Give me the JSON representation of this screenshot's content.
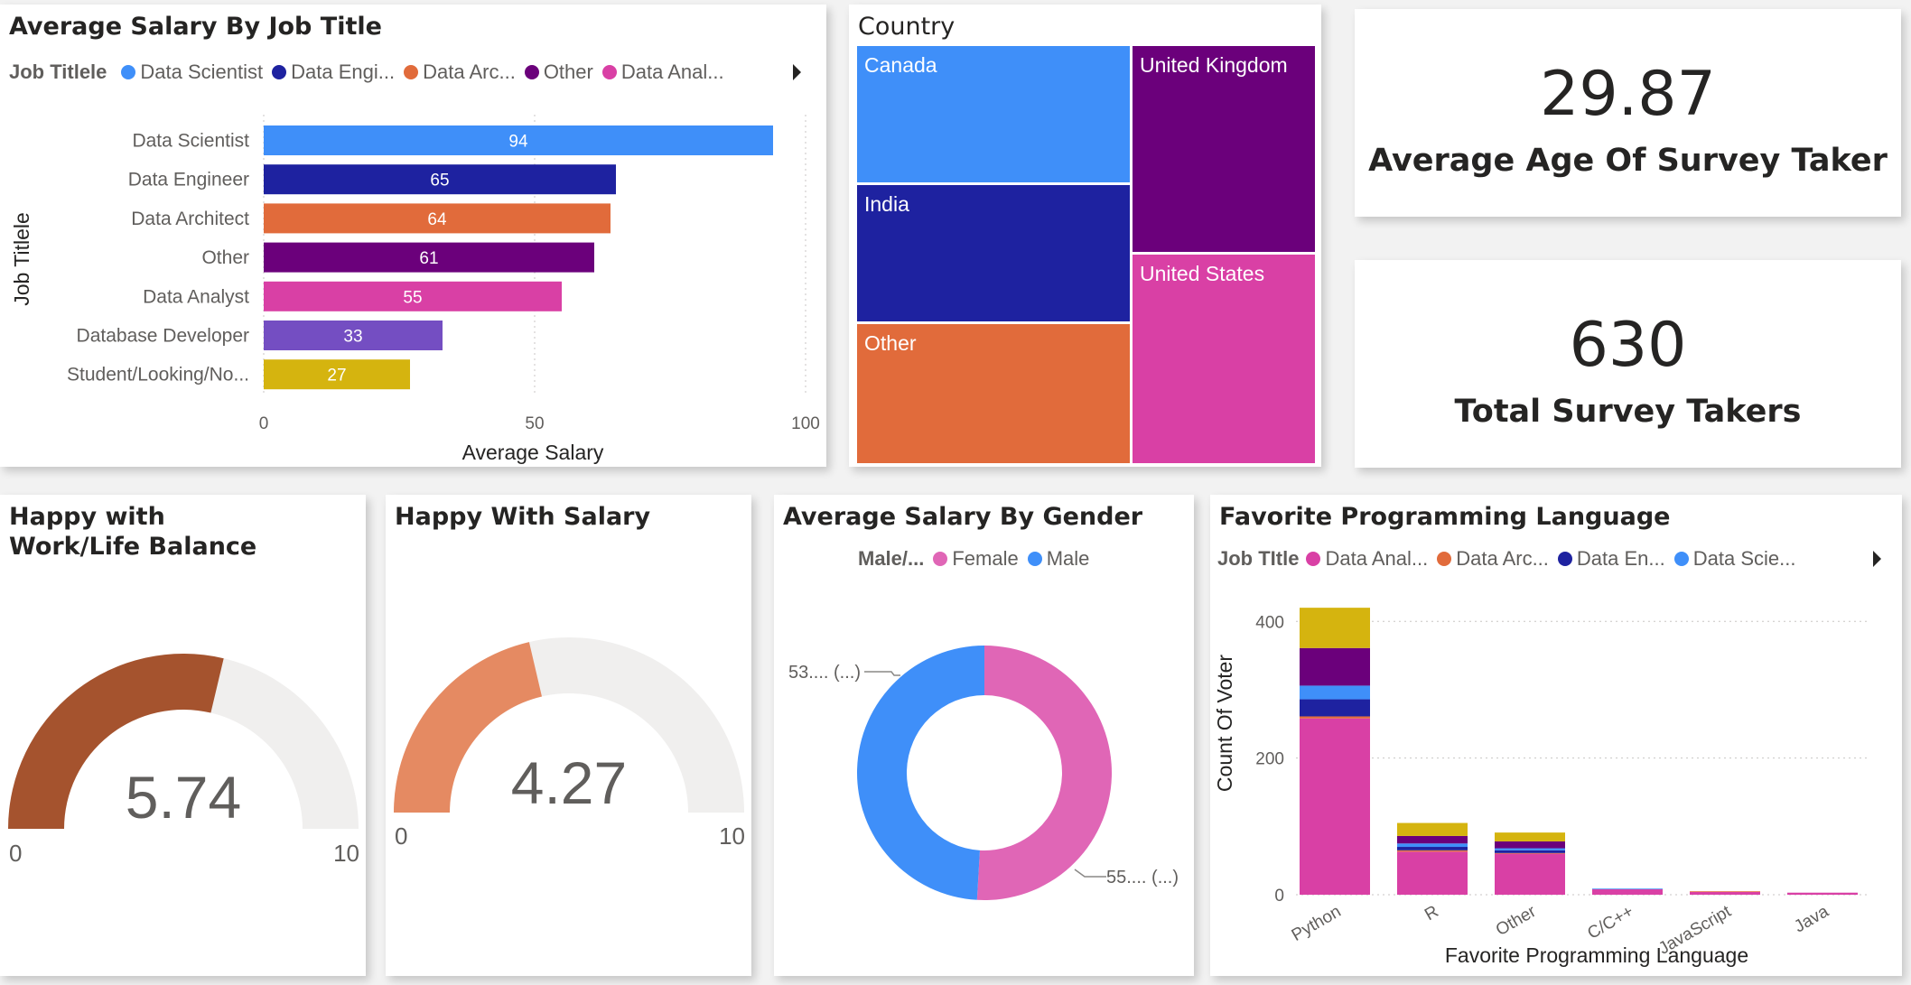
{
  "job_title_chart": {
    "title": "Average Salary By Job Title",
    "legend_title": "Job Titlele",
    "legend": [
      {
        "label": "Data Scientist",
        "color": "#3f8ff9"
      },
      {
        "label": "Data Engi...",
        "color": "#1e22a0"
      },
      {
        "label": "Data Arc...",
        "color": "#e16b3b"
      },
      {
        "label": "Other",
        "color": "#6b007b"
      },
      {
        "label": "Data Anal...",
        "color": "#d940a5"
      }
    ],
    "ylabel": "Job Titlele",
    "xlabel": "Average Salary",
    "ticks": [
      "0",
      "50",
      "100"
    ]
  },
  "country": {
    "title": "Country",
    "cells": [
      {
        "label": "Canada",
        "color": "#3f8ff9"
      },
      {
        "label": "India",
        "color": "#1e22a0"
      },
      {
        "label": "Other",
        "color": "#e16b3b"
      },
      {
        "label": "United Kingdom",
        "color": "#6b007b"
      },
      {
        "label": "United States",
        "color": "#d940a5"
      }
    ]
  },
  "kpi_age": {
    "value": "29.87",
    "label": "Average Age Of Survey Taker"
  },
  "kpi_total": {
    "value": "630",
    "label": "Total Survey Takers"
  },
  "gauge_worklife": {
    "title": "Happy with Work/Life Balance",
    "value": "5.74",
    "min": "0",
    "max": "10",
    "fraction": 0.574,
    "color": "#a5532e"
  },
  "gauge_salary": {
    "title": "Happy With Salary",
    "value": "4.27",
    "min": "0",
    "max": "10",
    "fraction": 0.427,
    "color": "#e58a62"
  },
  "gender": {
    "title": "Average Salary By Gender",
    "legend_title": "Male/...",
    "legend": [
      {
        "label": "Female",
        "color": "#e066b6"
      },
      {
        "label": "Male",
        "color": "#3f8ff9"
      }
    ],
    "label_male": "53.... (...)",
    "label_female": "55.... (...)"
  },
  "language": {
    "title": "Favorite Programming Language",
    "legend_title": "Job TItle",
    "legend": [
      {
        "label": "Data Anal...",
        "color": "#d940a5"
      },
      {
        "label": "Data Arc...",
        "color": "#e16b3b"
      },
      {
        "label": "Data En...",
        "color": "#1e22a0"
      },
      {
        "label": "Data Scie...",
        "color": "#3f8ff9"
      }
    ],
    "ylabel": "Count Of Voter",
    "xlabel": "Favorite Programming Language",
    "ticks": [
      "0",
      "200",
      "400"
    ]
  },
  "chart_data": [
    {
      "type": "bar",
      "orientation": "horizontal",
      "title": "Average Salary By Job Title",
      "xlabel": "Average Salary",
      "ylabel": "Job Titlele",
      "xlim": [
        0,
        100
      ],
      "grid": true,
      "legend_placement": "top",
      "categories": [
        "Data Scientist",
        "Data Engineer",
        "Data Architect",
        "Other",
        "Data Analyst",
        "Database Developer",
        "Student/Looking/No..."
      ],
      "values": [
        94,
        65,
        64,
        61,
        55,
        33,
        27
      ],
      "colors": [
        "#3f8ff9",
        "#1e22a0",
        "#e16b3b",
        "#6b007b",
        "#d940a5",
        "#744ec2",
        "#d5b40f"
      ]
    },
    {
      "type": "pie",
      "title": "Average Salary By Gender",
      "legend_placement": "top",
      "categories": [
        "Female",
        "Male"
      ],
      "values": [
        55,
        53
      ],
      "colors": [
        "#e066b6",
        "#3f8ff9"
      ]
    },
    {
      "type": "bar",
      "stacked": true,
      "title": "Favorite Programming Language",
      "xlabel": "Favorite Programming Language",
      "ylabel": "Count Of Voter",
      "ylim": [
        0,
        440
      ],
      "grid": true,
      "legend_placement": "top",
      "categories": [
        "Python",
        "R",
        "Other",
        "C/C++",
        "JavaScript",
        "Java"
      ],
      "series": [
        {
          "name": "Data Anal...",
          "color": "#d940a5",
          "values": [
            258,
            63,
            60,
            8,
            4,
            3
          ]
        },
        {
          "name": "Data Arc...",
          "color": "#e16b3b",
          "values": [
            3,
            2,
            1,
            0,
            1,
            0
          ]
        },
        {
          "name": "Data En...",
          "color": "#1e22a0",
          "values": [
            25,
            5,
            4,
            0,
            0,
            0
          ]
        },
        {
          "name": "Data Scie...",
          "color": "#3f8ff9",
          "values": [
            20,
            5,
            3,
            1,
            0,
            0
          ]
        },
        {
          "color": "#6b007b",
          "values": [
            55,
            11,
            10,
            0,
            0,
            0
          ]
        },
        {
          "color": "#d5b40f",
          "values": [
            59,
            19,
            13,
            0,
            0,
            0
          ]
        }
      ]
    }
  ]
}
